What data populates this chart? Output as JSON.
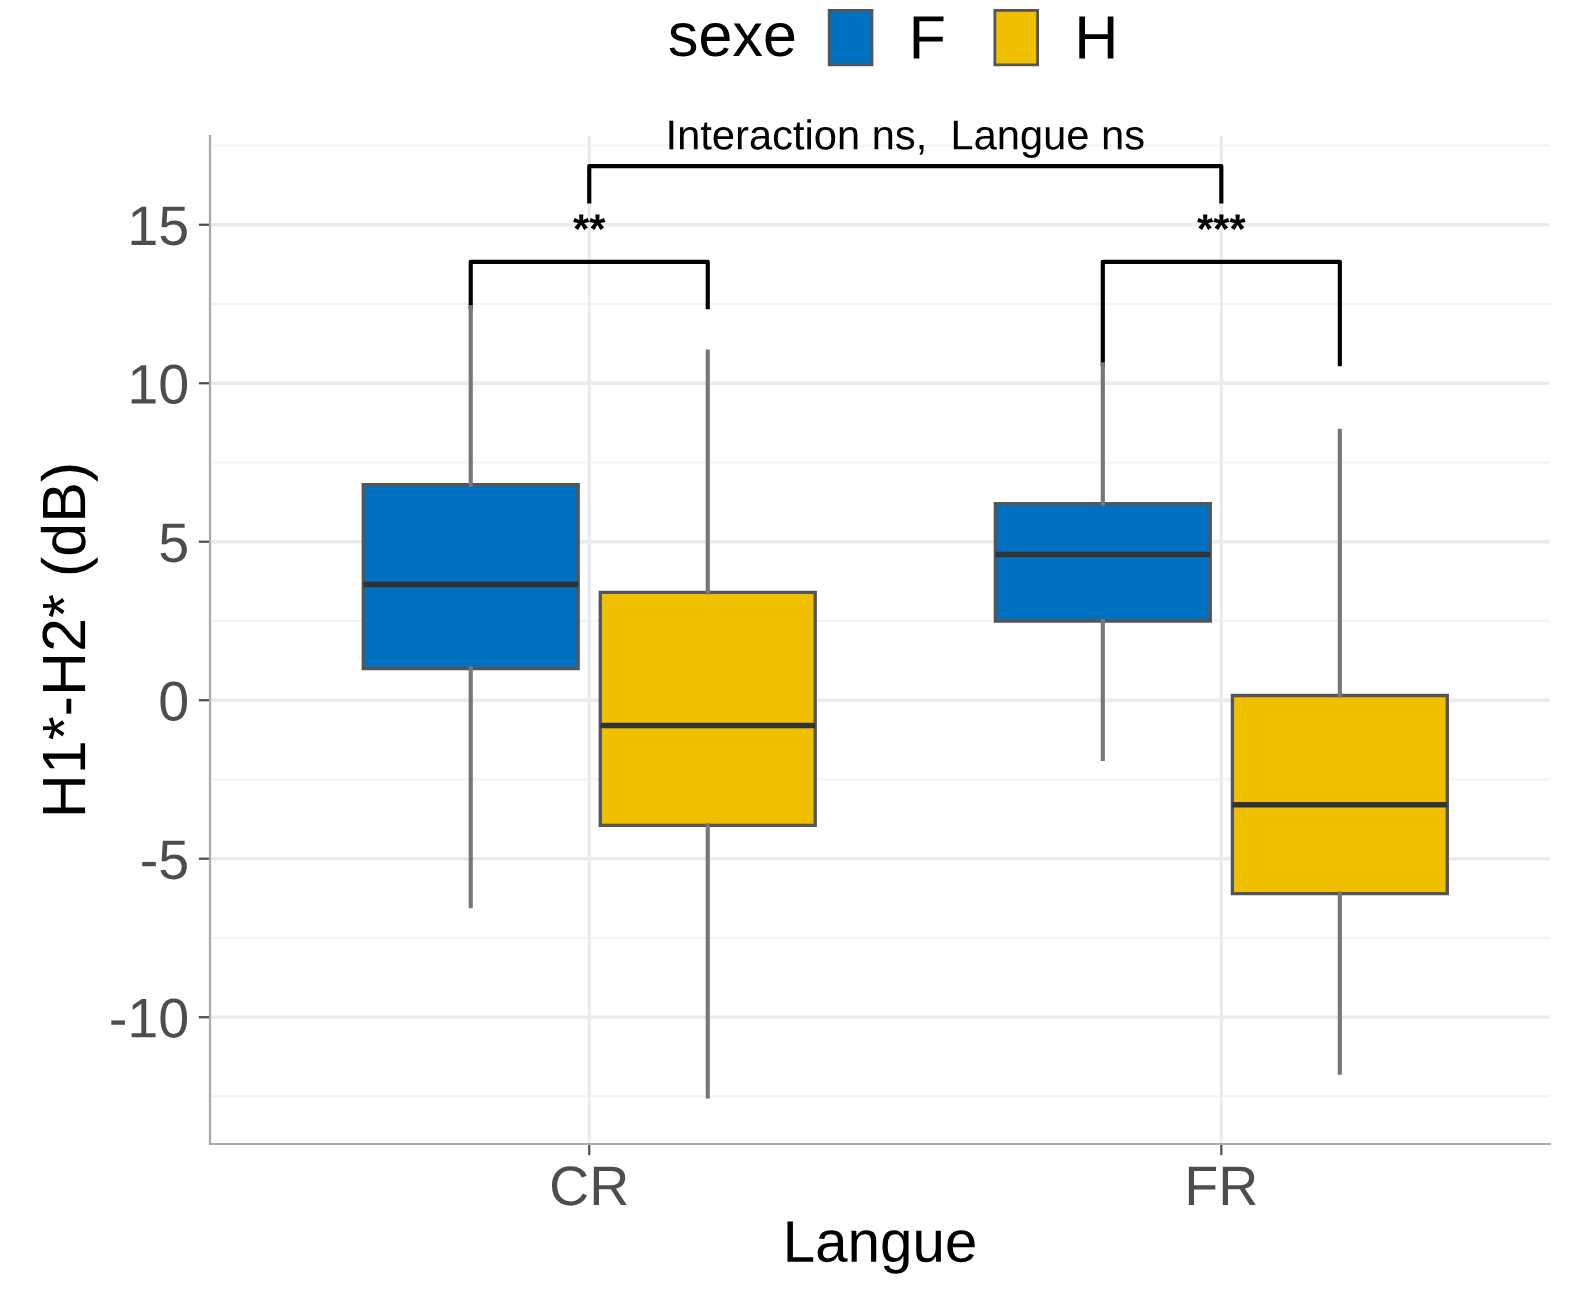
{
  "chart_data": {
    "type": "box",
    "xlabel": "Langue",
    "ylabel": "H1*-H2* (dB)",
    "legend_title": "sexe",
    "legend": "top",
    "categories": [
      "CR",
      "FR"
    ],
    "series": [
      {
        "name": "F",
        "color": "#0070c0",
        "boxes": [
          {
            "low": -6.5,
            "q1": 1.0,
            "median": 3.65,
            "q3": 6.8,
            "high": 12.4
          },
          {
            "low": -1.85,
            "q1": 2.5,
            "median": 4.6,
            "q3": 6.2,
            "high": 10.6
          }
        ]
      },
      {
        "name": "H",
        "color": "#f0c000",
        "boxes": [
          {
            "low": -12.5,
            "q1": -3.95,
            "median": -0.8,
            "q3": 3.4,
            "high": 11.0
          },
          {
            "low": -11.75,
            "q1": -6.1,
            "median": -3.3,
            "q3": 0.15,
            "high": 8.5
          }
        ]
      }
    ],
    "ylim": [
      -14,
      17.8
    ],
    "yticks": [
      -10,
      -5,
      0,
      5,
      10,
      15
    ],
    "grid": true,
    "annotations": [
      "**",
      "***",
      "Interaction ns,  Langue ns"
    ]
  }
}
